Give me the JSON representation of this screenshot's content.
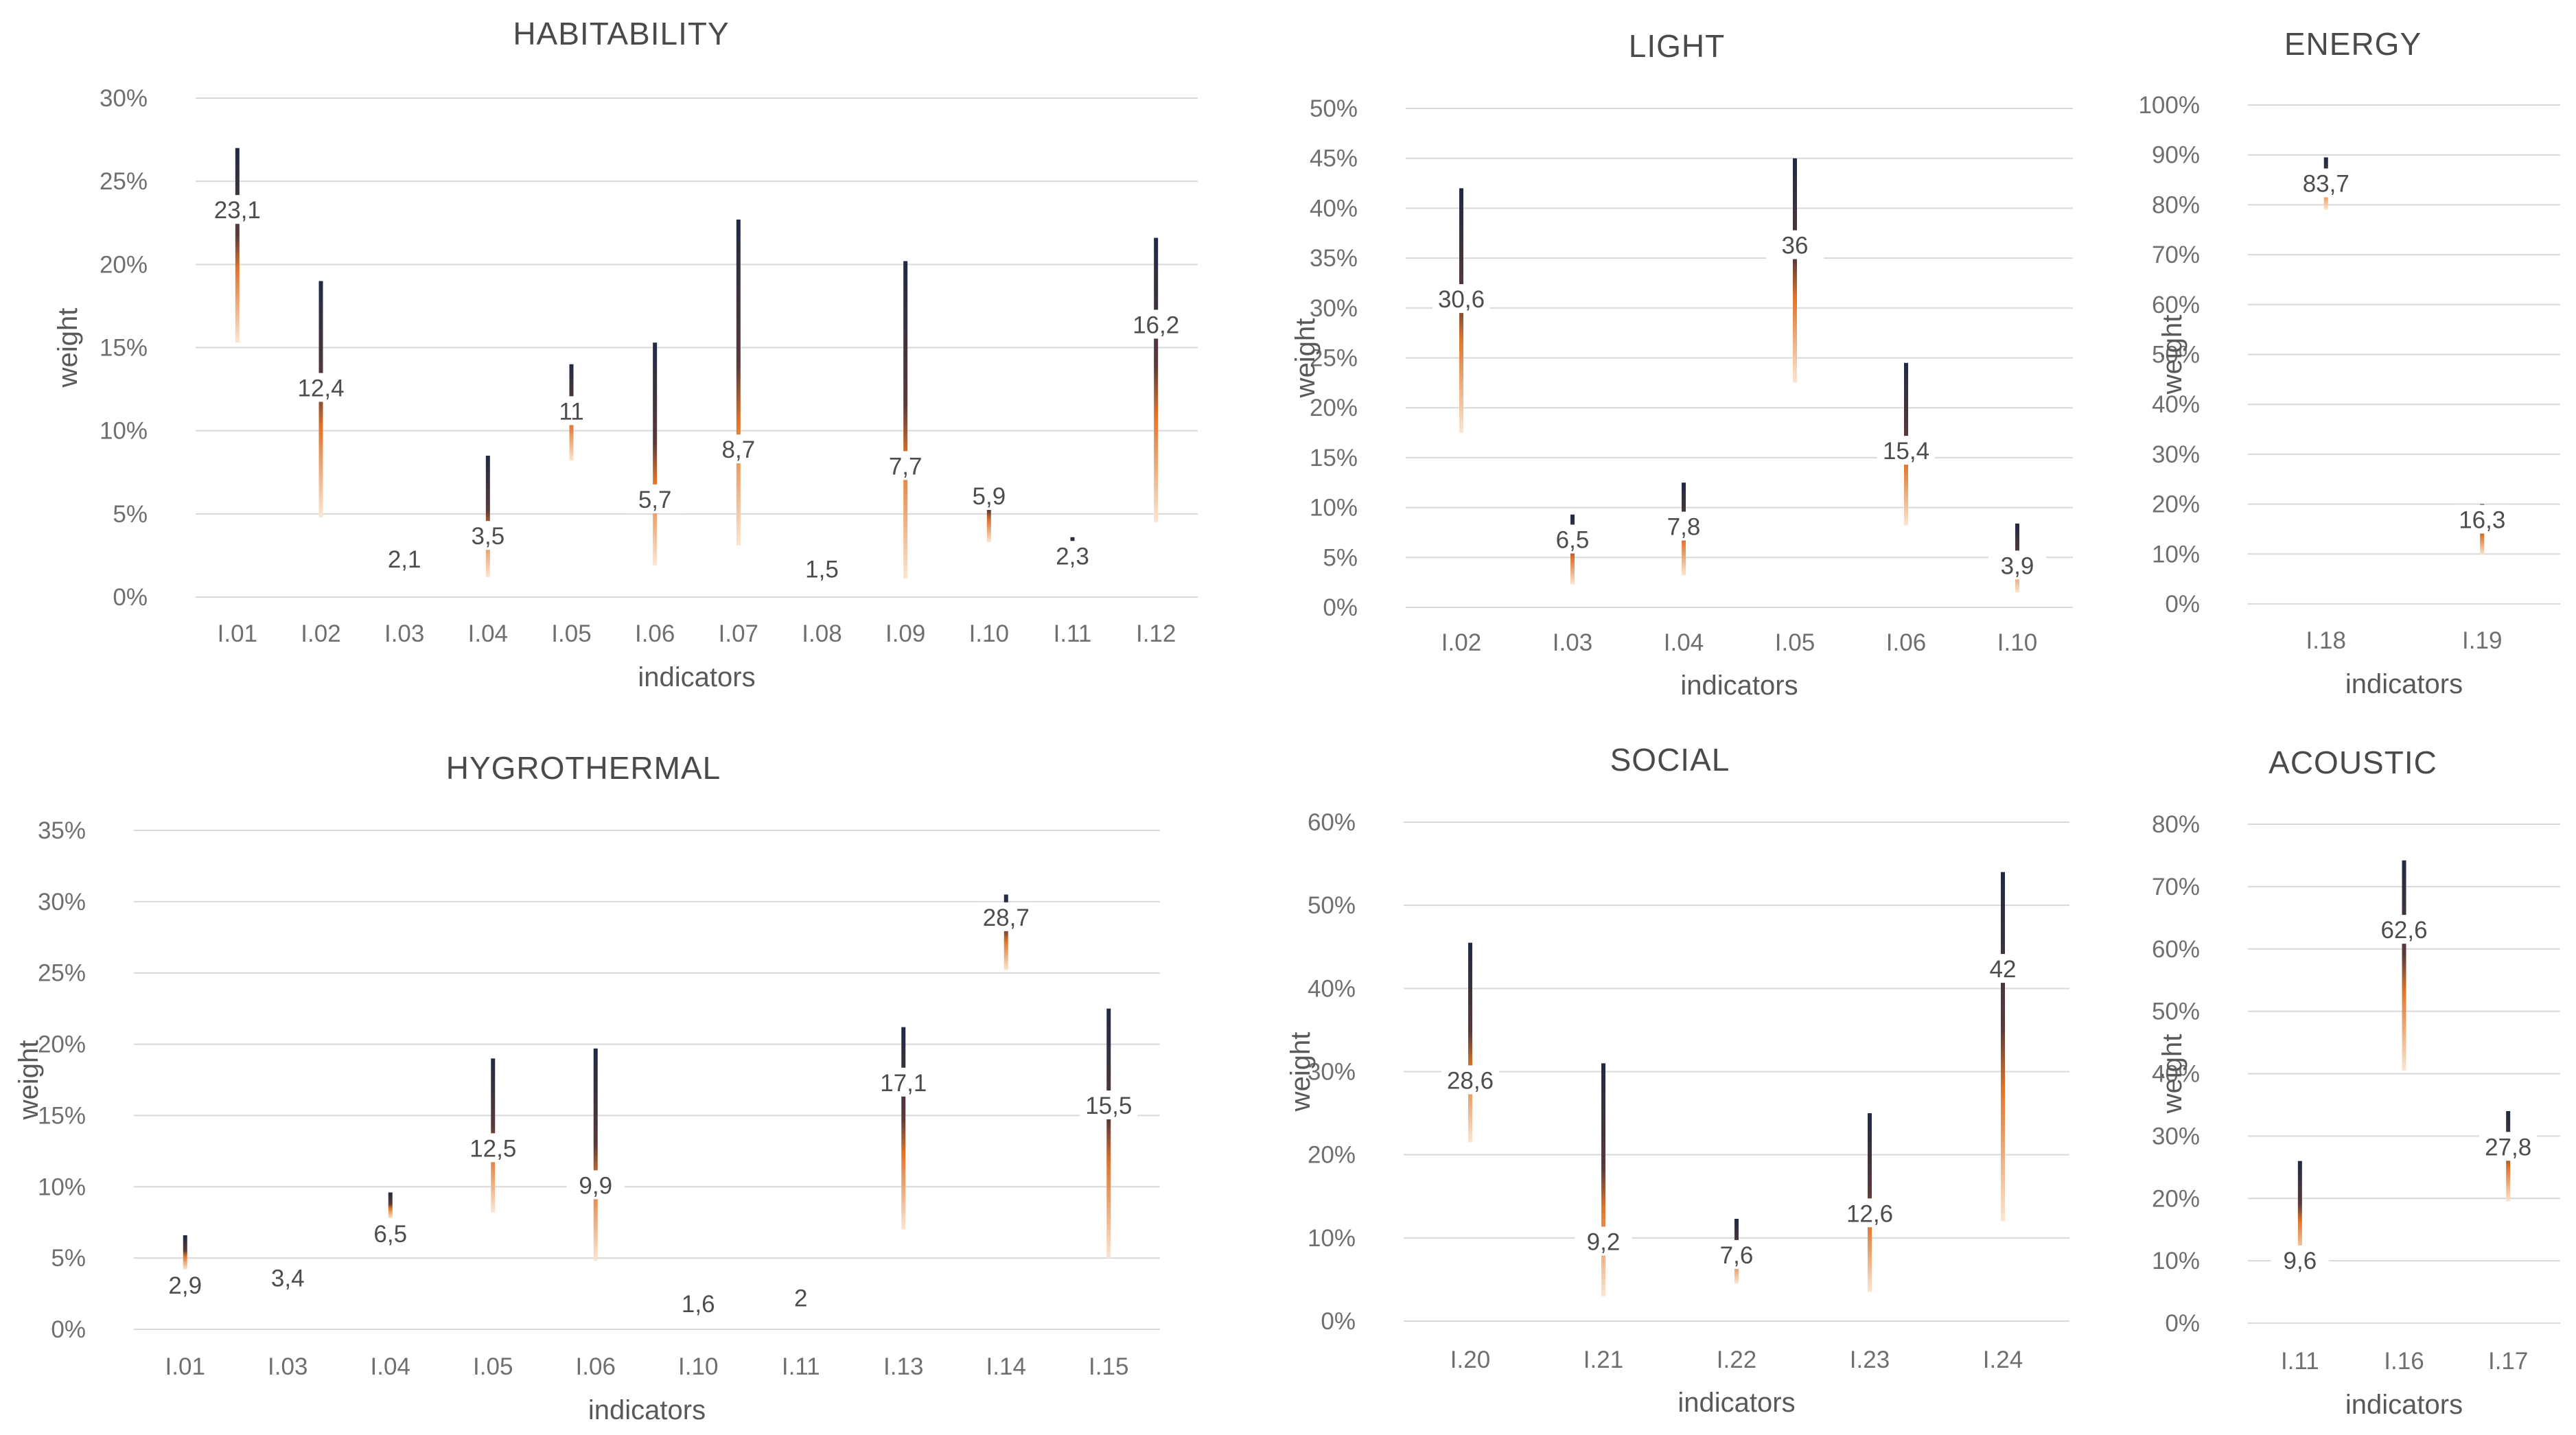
{
  "colors": {
    "top": "#1f2a44",
    "mid": "#e0742a",
    "bottom": "#fbe6d2",
    "grid": "#d9d9d9"
  },
  "chart_data": [
    {
      "type": "error-bar",
      "title": "HABITABILITY",
      "xlabel": "indicators",
      "ylabel": "weight",
      "yticks": [
        "0%",
        "5%",
        "10%",
        "15%",
        "20%",
        "25%",
        "30%"
      ],
      "ylim": [
        0,
        30
      ],
      "categories": [
        "I.01",
        "I.02",
        "I.03",
        "I.04",
        "I.05",
        "I.06",
        "I.07",
        "I.08",
        "I.09",
        "I.10",
        "I.11",
        "I.12"
      ],
      "values": [
        23.1,
        12.4,
        2.1,
        3.5,
        11,
        5.7,
        8.7,
        1.5,
        7.7,
        5.9,
        2.3,
        16.2
      ],
      "labels": [
        "23,1",
        "12,4",
        "2,1",
        "3,5",
        "11",
        "5,7",
        "8,7",
        "1,5",
        "7,7",
        "5,9",
        "2,3",
        "16,2"
      ],
      "high": [
        27,
        19,
        3,
        8.5,
        14,
        15.3,
        22.7,
        1.5,
        20.2,
        6.8,
        3.6,
        21.6
      ],
      "low": [
        15.3,
        4.8,
        1.8,
        1.2,
        8.2,
        1.9,
        3.1,
        1.5,
        1.1,
        3.3,
        2.1,
        4.5
      ]
    },
    {
      "type": "error-bar",
      "title": "LIGHT",
      "xlabel": "indicators",
      "ylabel": "weight",
      "yticks": [
        "0%",
        "5%",
        "10%",
        "15%",
        "20%",
        "25%",
        "30%",
        "35%",
        "40%",
        "45%",
        "50%"
      ],
      "ylim": [
        0,
        50
      ],
      "categories": [
        "I.02",
        "I.03",
        "I.04",
        "I.05",
        "I.06",
        "I.10"
      ],
      "values": [
        30.6,
        6.5,
        7.8,
        36,
        15.4,
        3.9
      ],
      "labels": [
        "30,6",
        "6,5",
        "7,8",
        "36",
        "15,4",
        "3,9"
      ],
      "high": [
        42,
        9.3,
        12.5,
        45,
        24.5,
        8.4
      ],
      "low": [
        17.5,
        2.3,
        3.2,
        22.5,
        8.2,
        1.5
      ]
    },
    {
      "type": "error-bar",
      "title": "ENERGY",
      "xlabel": "indicators",
      "ylabel": "weight",
      "yticks": [
        "0%",
        "10%",
        "20%",
        "30%",
        "40%",
        "50%",
        "60%",
        "70%",
        "80%",
        "90%",
        "100%"
      ],
      "ylim": [
        0,
        100
      ],
      "categories": [
        "I.18",
        "I.19"
      ],
      "values": [
        83.7,
        16.3
      ],
      "labels": [
        "83,7",
        "16,3"
      ],
      "high": [
        89.5,
        20
      ],
      "low": [
        79,
        9.8
      ]
    },
    {
      "type": "error-bar",
      "title": "HYGROTHERMAL",
      "xlabel": "indicators",
      "ylabel": "weight",
      "yticks": [
        "0%",
        "5%",
        "10%",
        "15%",
        "20%",
        "25%",
        "30%",
        "35%"
      ],
      "ylim": [
        0,
        35
      ],
      "categories": [
        "I.01",
        "I.03",
        "I.04",
        "I.05",
        "I.06",
        "I.10",
        "I.11",
        "I.13",
        "I.14",
        "I.15"
      ],
      "values": [
        2.9,
        3.4,
        6.5,
        12.5,
        9.9,
        1.6,
        2,
        17.1,
        28.7,
        15.5
      ],
      "labels": [
        "2,9",
        "3,4",
        "6,5",
        "12,5",
        "9,9",
        "1,6",
        "2",
        "17,1",
        "28,7",
        "15,5"
      ],
      "high": [
        6.6,
        3.4,
        9.6,
        19,
        19.7,
        1.6,
        2,
        21.2,
        30.5,
        22.5
      ],
      "low": [
        4.2,
        3.4,
        7.8,
        8.2,
        4.8,
        1.6,
        2,
        7,
        25.2,
        5
      ]
    },
    {
      "type": "error-bar",
      "title": "SOCIAL",
      "xlabel": "indicators",
      "ylabel": "weight",
      "yticks": [
        "0%",
        "10%",
        "20%",
        "30%",
        "40%",
        "50%",
        "60%"
      ],
      "ylim": [
        0,
        60
      ],
      "categories": [
        "I.20",
        "I.21",
        "I.22",
        "I.23",
        "I.24"
      ],
      "values": [
        28.6,
        9.2,
        7.6,
        12.6,
        42
      ],
      "labels": [
        "28,6",
        "9,2",
        "7,6",
        "12,6",
        "42"
      ],
      "high": [
        45.5,
        31,
        12.3,
        25,
        54
      ],
      "low": [
        21.5,
        3,
        4.5,
        3.5,
        12
      ]
    },
    {
      "type": "error-bar",
      "title": "ACOUSTIC",
      "xlabel": "indicators",
      "ylabel": "weight",
      "yticks": [
        "0%",
        "10%",
        "20%",
        "30%",
        "40%",
        "50%",
        "60%",
        "70%",
        "80%"
      ],
      "ylim": [
        0,
        80
      ],
      "categories": [
        "I.11",
        "I.16",
        "I.17"
      ],
      "values": [
        9.6,
        62.6,
        27.8
      ],
      "labels": [
        "9,6",
        "62,6",
        "27,8"
      ],
      "high": [
        26,
        74.2,
        34
      ],
      "low": [
        10.5,
        40.5,
        19.5
      ]
    }
  ]
}
